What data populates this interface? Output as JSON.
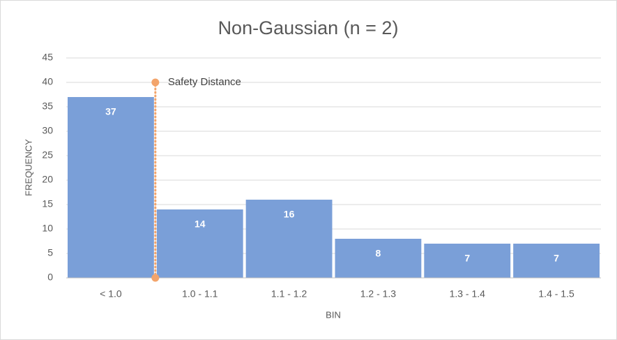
{
  "chart_data": {
    "type": "bar",
    "title": "Non-Gaussian (n = 2)",
    "x_label": "BIN",
    "y_label": "FREQUENCY",
    "categories": [
      "< 1.0",
      "1.0 - 1.1",
      "1.1 - 1.2",
      "1.2 - 1.3",
      "1.3 - 1.4",
      "1.4 - 1.5"
    ],
    "values": [
      37,
      14,
      16,
      8,
      7,
      7
    ],
    "color": "#7a9fd8",
    "ylim": [
      0,
      45
    ],
    "yticks": [
      0,
      5,
      10,
      15,
      20,
      25,
      30,
      35,
      40,
      45
    ],
    "grid": true,
    "reference_line": {
      "label": "Safety Distance",
      "values": [
        0,
        40
      ],
      "color": "#f3a46b"
    }
  }
}
